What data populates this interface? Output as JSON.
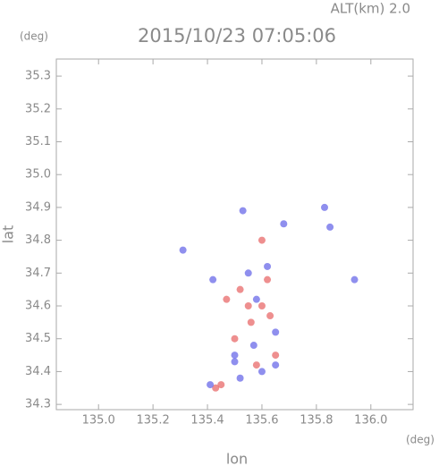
{
  "chart_data": {
    "type": "scatter",
    "title": "2015/10/23 07:05:06",
    "subtitle": "ALT(km) 2.0",
    "x_label": "lon",
    "y_label": "lat",
    "x_unit": "(deg)",
    "y_unit": "(deg)",
    "xlim": [
      134.845,
      136.155
    ],
    "ylim": [
      34.284,
      35.352
    ],
    "xticks": [
      {
        "value": 135,
        "label": "135.0"
      },
      135.2,
      135.4,
      135.6,
      135.8,
      {
        "value": 136,
        "label": "136.0"
      }
    ],
    "yticks": [
      34.3,
      34.4,
      34.5,
      34.6,
      34.7,
      34.8,
      34.9,
      {
        "value": 35,
        "label": "35.0"
      },
      35.1,
      35.2,
      35.3
    ],
    "series": [
      {
        "color": "#e86a6a",
        "x": [
          135.45,
          135.43,
          135.58,
          135.55,
          135.6,
          135.52,
          135.65,
          135.6,
          135.5,
          135.62,
          135.56,
          135.47,
          135.63
        ],
        "y": [
          34.36,
          34.35,
          34.42,
          34.6,
          34.6,
          34.65,
          34.45,
          34.8,
          34.5,
          34.68,
          34.55,
          34.62,
          34.57
        ]
      },
      {
        "color": "#6a6ae8",
        "x": [
          135.6,
          135.65,
          135.52,
          135.5,
          135.94,
          135.85,
          135.31,
          135.42,
          135.58,
          135.65,
          135.55,
          135.68,
          135.83,
          135.5,
          135.41,
          135.57,
          135.62,
          135.53
        ],
        "y": [
          34.4,
          34.42,
          34.38,
          34.43,
          34.68,
          34.84,
          34.77,
          34.68,
          34.62,
          34.52,
          34.7,
          34.85,
          34.9,
          34.45,
          34.36,
          34.48,
          34.72,
          34.89
        ]
      }
    ]
  }
}
